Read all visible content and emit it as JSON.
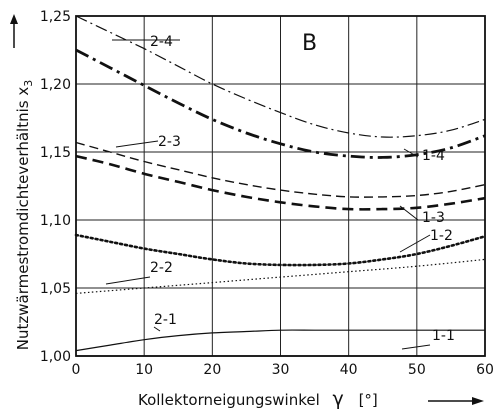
{
  "chart_data": {
    "type": "line",
    "panel_label": "B",
    "xlabel": "Kollektorneigungswinkel",
    "xlabel_symbol": "γ",
    "xunit": "[°]",
    "ylabel": "Nutzwärmestromdichteverhältnis",
    "ylabel_symbol": "x",
    "ylabel_subscript": "3",
    "xlim": [
      0,
      60
    ],
    "ylim": [
      1.0,
      1.25
    ],
    "xticks": [
      0,
      10,
      20,
      30,
      40,
      50,
      60
    ],
    "yticks": [
      "1,00",
      "1,05",
      "1,10",
      "1,15",
      "1,20",
      "1,25"
    ],
    "ytick_values": [
      1.0,
      1.05,
      1.1,
      1.15,
      1.2,
      1.25
    ],
    "grid": true,
    "series": [
      {
        "name": "2-4",
        "style": "dash-dot-thin",
        "x": [
          0,
          5,
          10,
          15,
          20,
          25,
          30,
          35,
          40,
          45,
          50,
          55,
          60
        ],
        "y": [
          1.25,
          1.238,
          1.226,
          1.213,
          1.2,
          1.189,
          1.179,
          1.17,
          1.164,
          1.161,
          1.162,
          1.166,
          1.174
        ]
      },
      {
        "name": "1-4",
        "style": "dash-dot-thick",
        "x": [
          0,
          5,
          10,
          15,
          20,
          25,
          30,
          35,
          40,
          45,
          50,
          55,
          60
        ],
        "y": [
          1.225,
          1.212,
          1.199,
          1.186,
          1.174,
          1.164,
          1.156,
          1.15,
          1.147,
          1.146,
          1.148,
          1.153,
          1.162
        ]
      },
      {
        "name": "2-3",
        "style": "dash-thin",
        "x": [
          0,
          5,
          10,
          15,
          20,
          25,
          30,
          35,
          40,
          45,
          50,
          55,
          60
        ],
        "y": [
          1.157,
          1.15,
          1.143,
          1.137,
          1.131,
          1.126,
          1.122,
          1.119,
          1.117,
          1.117,
          1.118,
          1.121,
          1.126
        ]
      },
      {
        "name": "1-3",
        "style": "dash-thick",
        "x": [
          0,
          5,
          10,
          15,
          20,
          25,
          30,
          35,
          40,
          45,
          50,
          55,
          60
        ],
        "y": [
          1.147,
          1.141,
          1.134,
          1.128,
          1.122,
          1.117,
          1.113,
          1.11,
          1.108,
          1.108,
          1.109,
          1.112,
          1.116
        ]
      },
      {
        "name": "1-2",
        "style": "dotted",
        "x": [
          0,
          5,
          10,
          15,
          20,
          25,
          30,
          35,
          40,
          45,
          50,
          55,
          60
        ],
        "y": [
          1.089,
          1.084,
          1.079,
          1.075,
          1.071,
          1.068,
          1.067,
          1.067,
          1.068,
          1.071,
          1.075,
          1.081,
          1.088
        ]
      },
      {
        "name": "2-2",
        "style": "dotted-thin",
        "x": [
          0,
          10,
          20,
          30,
          40,
          50,
          60
        ],
        "y": [
          1.046,
          1.05,
          1.054,
          1.058,
          1.062,
          1.066,
          1.071
        ]
      },
      {
        "name": "2-1",
        "style": "solid",
        "x": [
          0,
          5,
          10,
          15,
          20,
          25,
          30,
          35,
          40,
          45,
          50,
          55,
          60
        ],
        "y": [
          1.004,
          1.008,
          1.012,
          1.015,
          1.017,
          1.018,
          1.019,
          1.019,
          1.019,
          1.019,
          1.019,
          1.019,
          1.019
        ]
      },
      {
        "name": "1-1",
        "style": "solid",
        "x": [
          0,
          60
        ],
        "y": [
          1.0,
          1.0
        ]
      }
    ]
  }
}
